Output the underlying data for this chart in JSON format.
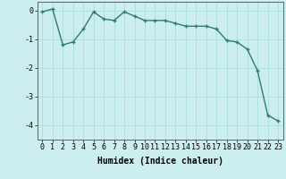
{
  "title": "",
  "xlabel": "Humidex (Indice chaleur)",
  "x": [
    0,
    1,
    2,
    3,
    4,
    5,
    6,
    7,
    8,
    9,
    10,
    11,
    12,
    13,
    14,
    15,
    16,
    17,
    18,
    19,
    20,
    21,
    22,
    23
  ],
  "y": [
    -0.05,
    0.05,
    -1.2,
    -1.1,
    -0.65,
    -0.05,
    -0.3,
    -0.35,
    -0.05,
    -0.2,
    -0.35,
    -0.35,
    -0.35,
    -0.45,
    -0.55,
    -0.55,
    -0.55,
    -0.65,
    -1.05,
    -1.1,
    -1.35,
    -2.1,
    -3.65,
    -3.85
  ],
  "ylim": [
    -4.5,
    0.3
  ],
  "xlim": [
    -0.5,
    23.5
  ],
  "yticks": [
    0,
    -1,
    -2,
    -3,
    -4
  ],
  "xticks": [
    0,
    1,
    2,
    3,
    4,
    5,
    6,
    7,
    8,
    9,
    10,
    11,
    12,
    13,
    14,
    15,
    16,
    17,
    18,
    19,
    20,
    21,
    22,
    23
  ],
  "line_color": "#2e7d6e",
  "bg_color": "#cceeee",
  "grid_color": "#aadddd",
  "marker": "+",
  "title_fontsize": 7,
  "xlabel_fontsize": 7,
  "tick_fontsize": 6,
  "linewidth": 1.0,
  "markersize": 3.5,
  "markeredgewidth": 1.0
}
